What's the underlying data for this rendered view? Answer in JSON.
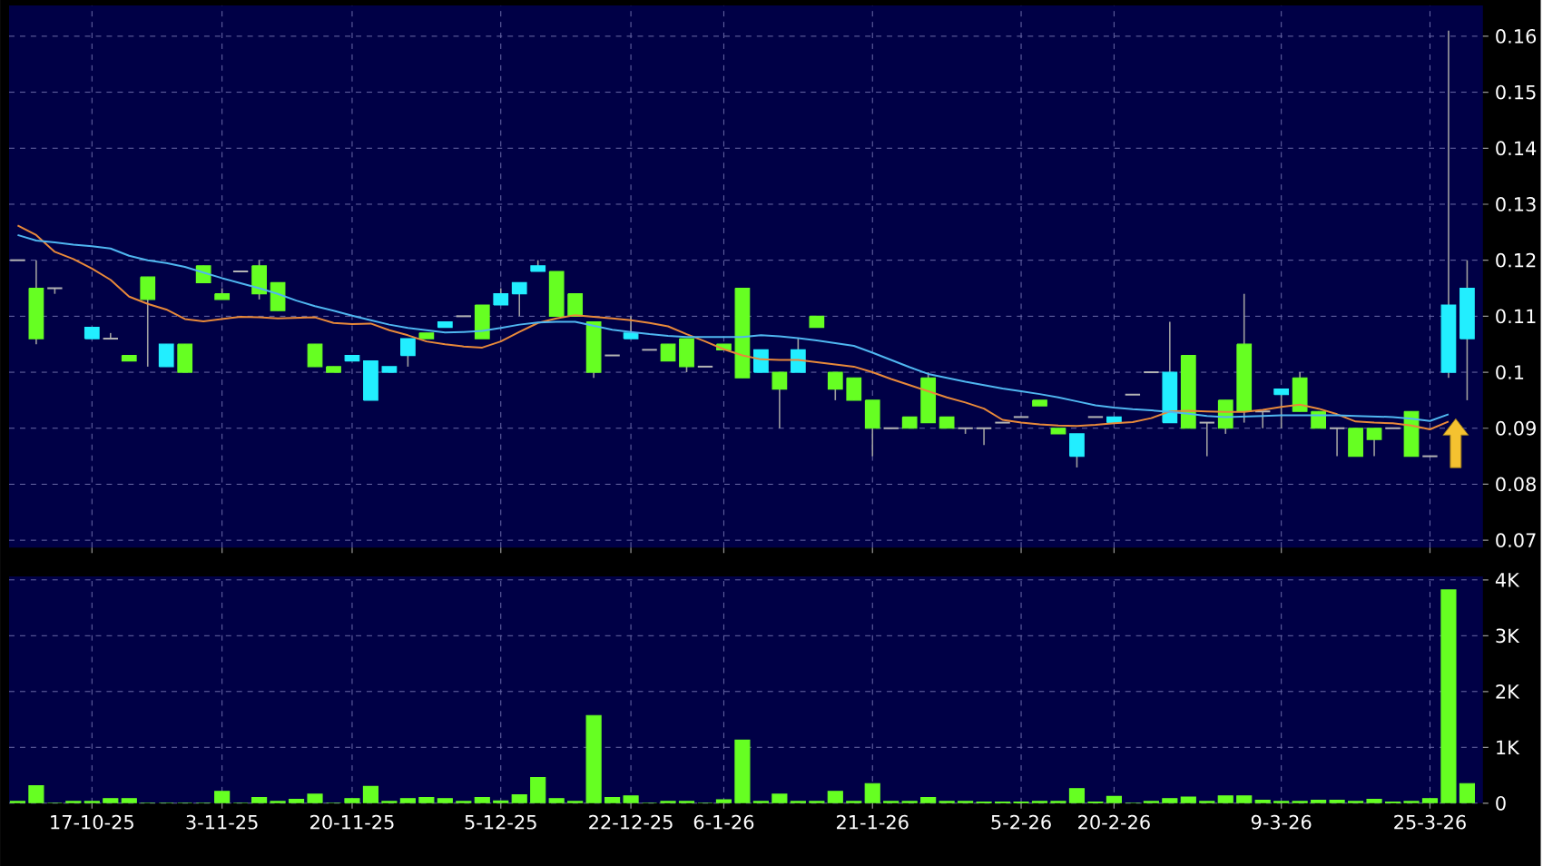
{
  "chart_data": [
    {
      "type": "candlestick",
      "tick_labels": "y",
      "grid": true,
      "categories": [
        null,
        null,
        null,
        null,
        null,
        null,
        null,
        null,
        null,
        null,
        null,
        null,
        null,
        null,
        null,
        null,
        null,
        null,
        null,
        null,
        null,
        null,
        null,
        null,
        null,
        null,
        null,
        null,
        null,
        null,
        null,
        null,
        null,
        null,
        null,
        null,
        null,
        null,
        null,
        null,
        null,
        null,
        null,
        null,
        null,
        null,
        null,
        null,
        null,
        null,
        null,
        null,
        null,
        null,
        null,
        null,
        null,
        null,
        null,
        null,
        null,
        null,
        null,
        null,
        null,
        null,
        null,
        null,
        null,
        null,
        null,
        null,
        null,
        null,
        null,
        null,
        null,
        null,
        null
      ],
      "ohlc": [
        [
          0.12,
          0.12,
          0.12,
          0.12
        ],
        [
          0.115,
          0.12,
          0.105,
          0.106
        ],
        [
          0.115,
          0.115,
          0.114,
          0.115
        ],
        null,
        [
          0.106,
          0.108,
          0.106,
          0.108
        ],
        [
          0.106,
          0.107,
          0.106,
          0.106
        ],
        [
          0.103,
          0.103,
          0.102,
          0.102
        ],
        [
          0.117,
          0.117,
          0.101,
          0.113
        ],
        [
          0.101,
          0.105,
          0.101,
          0.105
        ],
        [
          0.105,
          0.105,
          0.1,
          0.1
        ],
        [
          0.119,
          0.119,
          0.116,
          0.116
        ],
        [
          0.114,
          0.115,
          0.113,
          0.113
        ],
        [
          0.118,
          0.118,
          0.118,
          0.118
        ],
        [
          0.119,
          0.12,
          0.113,
          0.114
        ],
        [
          0.116,
          0.116,
          0.111,
          0.111
        ],
        null,
        [
          0.105,
          0.105,
          0.101,
          0.101
        ],
        [
          0.101,
          0.101,
          0.1,
          0.1
        ],
        [
          0.102,
          0.103,
          0.102,
          0.103
        ],
        [
          0.095,
          0.102,
          0.095,
          0.102
        ],
        [
          0.1,
          0.101,
          0.1,
          0.101
        ],
        [
          0.103,
          0.106,
          0.101,
          0.106
        ],
        [
          0.107,
          0.107,
          0.106,
          0.106
        ],
        [
          0.108,
          0.109,
          0.108,
          0.109
        ],
        [
          0.11,
          0.11,
          0.11,
          0.11
        ],
        [
          0.112,
          0.112,
          0.106,
          0.106
        ],
        [
          0.112,
          0.115,
          0.112,
          0.114
        ],
        [
          0.114,
          0.116,
          0.11,
          0.116
        ],
        [
          0.118,
          0.12,
          0.118,
          0.119
        ],
        [
          0.118,
          0.118,
          0.11,
          0.11
        ],
        [
          0.114,
          0.114,
          0.11,
          0.11
        ],
        [
          0.109,
          0.109,
          0.099,
          0.1
        ],
        [
          0.103,
          0.103,
          0.103,
          0.103
        ],
        [
          0.106,
          0.11,
          0.106,
          0.107
        ],
        [
          0.104,
          0.104,
          0.104,
          0.104
        ],
        [
          0.105,
          0.105,
          0.102,
          0.102
        ],
        [
          0.106,
          0.106,
          0.1,
          0.101
        ],
        [
          0.101,
          0.101,
          0.101,
          0.101
        ],
        [
          0.105,
          0.105,
          0.104,
          0.104
        ],
        [
          0.115,
          0.115,
          0.099,
          0.099
        ],
        [
          0.1,
          0.104,
          0.1,
          0.104
        ],
        [
          0.1,
          0.1,
          0.09,
          0.097
        ],
        [
          0.1,
          0.106,
          0.1,
          0.104
        ],
        [
          0.11,
          0.11,
          0.108,
          0.108
        ],
        [
          0.1,
          0.1,
          0.095,
          0.097
        ],
        [
          0.099,
          0.099,
          0.095,
          0.095
        ],
        [
          0.095,
          0.095,
          0.085,
          0.09
        ],
        [
          0.09,
          0.09,
          0.09,
          0.09
        ],
        [
          0.092,
          0.092,
          0.09,
          0.09
        ],
        [
          0.099,
          0.1,
          0.091,
          0.091
        ],
        [
          0.092,
          0.092,
          0.09,
          0.09
        ],
        [
          0.09,
          0.09,
          0.089,
          0.09
        ],
        [
          0.09,
          0.09,
          0.087,
          0.09
        ],
        [
          0.091,
          0.091,
          0.091,
          0.091
        ],
        [
          0.092,
          0.092,
          0.092,
          0.092
        ],
        [
          0.095,
          0.095,
          0.094,
          0.094
        ],
        [
          0.09,
          0.09,
          0.089,
          0.089
        ],
        [
          0.085,
          0.089,
          0.083,
          0.089
        ],
        [
          0.092,
          0.092,
          0.092,
          0.092
        ],
        [
          0.091,
          0.092,
          0.091,
          0.092
        ],
        [
          0.096,
          0.096,
          0.096,
          0.096
        ],
        [
          0.1,
          0.1,
          0.1,
          0.1
        ],
        [
          0.091,
          0.109,
          0.091,
          0.1
        ],
        [
          0.103,
          0.103,
          0.09,
          0.09
        ],
        [
          0.091,
          0.091,
          0.085,
          0.091
        ],
        [
          0.095,
          0.095,
          0.089,
          0.09
        ],
        [
          0.105,
          0.114,
          0.091,
          0.093
        ],
        [
          0.093,
          0.093,
          0.09,
          0.093
        ],
        [
          0.096,
          0.097,
          0.09,
          0.097
        ],
        [
          0.099,
          0.1,
          0.093,
          0.093
        ],
        [
          0.093,
          0.093,
          0.09,
          0.09
        ],
        [
          0.09,
          0.09,
          0.085,
          0.09
        ],
        [
          0.09,
          0.09,
          0.085,
          0.085
        ],
        [
          0.09,
          0.09,
          0.085,
          0.088
        ],
        [
          0.09,
          0.09,
          0.09,
          0.09
        ],
        [
          0.093,
          0.093,
          0.085,
          0.085
        ],
        [
          0.085,
          0.085,
          0.085,
          0.085
        ],
        [
          0.1,
          0.161,
          0.099,
          0.112
        ],
        [
          0.106,
          0.12,
          0.095,
          0.115
        ]
      ],
      "colors": [
        "#b4b4b4",
        "#66ff22",
        "#b4b4b4",
        null,
        "#22eeff",
        "#b4b4b4",
        "#66ff22",
        "#66ff22",
        "#22eeff",
        "#66ff22",
        "#66ff22",
        "#66ff22",
        "#b4b4b4",
        "#66ff22",
        "#66ff22",
        null,
        "#66ff22",
        "#66ff22",
        "#22eeff",
        "#22eeff",
        "#22eeff",
        "#22eeff",
        "#66ff22",
        "#22eeff",
        "#b4b4b4",
        "#66ff22",
        "#22eeff",
        "#22eeff",
        "#22eeff",
        "#66ff22",
        "#66ff22",
        "#66ff22",
        "#b4b4b4",
        "#22eeff",
        "#b4b4b4",
        "#66ff22",
        "#66ff22",
        "#b4b4b4",
        "#66ff22",
        "#66ff22",
        "#22eeff",
        "#66ff22",
        "#22eeff",
        "#66ff22",
        "#66ff22",
        "#66ff22",
        "#66ff22",
        "#b4b4b4",
        "#66ff22",
        "#66ff22",
        "#66ff22",
        "#b4b4b4",
        "#b4b4b4",
        "#b4b4b4",
        "#b4b4b4",
        "#66ff22",
        "#66ff22",
        "#22eeff",
        "#b4b4b4",
        "#22eeff",
        "#b4b4b4",
        "#b4b4b4",
        "#22eeff",
        "#66ff22",
        "#b4b4b4",
        "#66ff22",
        "#66ff22",
        "#b4b4b4",
        "#22eeff",
        "#66ff22",
        "#66ff22",
        "#b4b4b4",
        "#66ff22",
        "#66ff22",
        "#b4b4b4",
        "#66ff22",
        "#b4b4b4",
        "#22eeff",
        "#22eeff"
      ],
      "series": [
        {
          "type": "line",
          "color": "#e8893a",
          "values": [
            0.1262,
            0.1245,
            0.1215,
            0.1202,
            0.1185,
            0.1165,
            0.1135,
            0.1122,
            0.1112,
            0.1095,
            0.1091,
            0.1095,
            0.1099,
            0.1098,
            0.1096,
            0.1097,
            0.1098,
            0.1088,
            0.1086,
            0.1087,
            0.1075,
            0.1066,
            0.1055,
            0.105,
            0.1046,
            0.1044,
            0.1055,
            0.1072,
            0.1088,
            0.1096,
            0.1102,
            0.1099,
            0.1096,
            0.1093,
            0.1088,
            0.1082,
            0.1068,
            0.1055,
            0.1041,
            0.103,
            0.1023,
            0.1022,
            0.1022,
            0.1018,
            0.1014,
            0.101,
            0.1,
            0.0988,
            0.0977,
            0.0966,
            0.0955,
            0.0946,
            0.0935,
            0.0915,
            0.091,
            0.0907,
            0.0905,
            0.0904,
            0.0906,
            0.0909,
            0.0911,
            0.0918,
            0.093,
            0.0931,
            0.093,
            0.0929,
            0.0929,
            0.0933,
            0.0938,
            0.0942,
            0.0935,
            0.0925,
            0.0912,
            0.091,
            0.0909,
            0.0905,
            0.0898,
            0.0912,
            null
          ]
        },
        {
          "type": "line",
          "color": "#4fb6f0",
          "values": [
            0.1245,
            0.1235,
            0.1232,
            0.1228,
            0.1225,
            0.1221,
            0.1208,
            0.12,
            0.1195,
            0.1188,
            0.1178,
            0.1168,
            0.1159,
            0.115,
            0.114,
            0.1128,
            0.1118,
            0.111,
            0.1101,
            0.1093,
            0.1085,
            0.1079,
            0.1075,
            0.1071,
            0.1072,
            0.1074,
            0.1079,
            0.1085,
            0.1089,
            0.109,
            0.109,
            0.1083,
            0.1076,
            0.1072,
            0.1068,
            0.1065,
            0.1063,
            0.1063,
            0.1063,
            0.1063,
            0.1066,
            0.1064,
            0.1061,
            0.1057,
            0.1052,
            0.1047,
            0.1035,
            0.1022,
            0.1009,
            0.0997,
            0.099,
            0.0983,
            0.0977,
            0.0971,
            0.0966,
            0.0961,
            0.0955,
            0.0948,
            0.0941,
            0.0937,
            0.0934,
            0.0932,
            0.0929,
            0.0926,
            0.0922,
            0.092,
            0.0921,
            0.0922,
            0.0923,
            0.0923,
            0.0923,
            0.0923,
            0.0922,
            0.0921,
            0.092,
            0.0917,
            0.0913,
            0.0925,
            null
          ]
        }
      ],
      "ylim": [
        0.0687,
        0.1655
      ],
      "yticks": [
        0.07,
        0.08,
        0.09,
        0.1,
        0.11,
        0.12,
        0.13,
        0.14,
        0.15,
        0.16
      ]
    },
    {
      "type": "bar",
      "grid": true,
      "color": "#66ff22",
      "categories": [
        null,
        null,
        null,
        null,
        "17-10-25",
        null,
        null,
        null,
        null,
        null,
        null,
        "3-11-25",
        null,
        null,
        null,
        null,
        null,
        null,
        "20-11-25",
        null,
        null,
        null,
        null,
        null,
        null,
        null,
        "5-12-25",
        null,
        null,
        null,
        null,
        null,
        null,
        "22-12-25",
        null,
        null,
        null,
        null,
        "6-1-26",
        null,
        null,
        null,
        null,
        null,
        null,
        null,
        "21-1-26",
        null,
        null,
        null,
        null,
        null,
        null,
        null,
        "5-2-26",
        null,
        null,
        null,
        null,
        "20-2-26",
        null,
        null,
        null,
        null,
        null,
        null,
        null,
        null,
        "9-3-26",
        null,
        null,
        null,
        null,
        null,
        null,
        null,
        "25-3-26",
        null,
        null
      ],
      "values": [
        0.03,
        0.31,
        0,
        0.03,
        0.03,
        0.08,
        0.08,
        0,
        0,
        0,
        0,
        0.21,
        0,
        0.1,
        0.03,
        0.07,
        0.16,
        0,
        0.08,
        0.3,
        0.03,
        0.08,
        0.1,
        0.08,
        0.03,
        0.1,
        0.04,
        0.15,
        0.46,
        0.08,
        0.03,
        1.57,
        0.1,
        0.13,
        0,
        0.03,
        0.03,
        0,
        0.06,
        1.13,
        0.03,
        0.16,
        0.03,
        0.03,
        0.21,
        0.03,
        0.35,
        0.03,
        0.03,
        0.1,
        0.03,
        0.03,
        0.02,
        0.02,
        0.02,
        0.03,
        0.03,
        0.26,
        0.02,
        0.12,
        0,
        0.03,
        0.08,
        0.11,
        0.03,
        0.13,
        0.13,
        0.05,
        0.03,
        0.03,
        0.05,
        0.05,
        0.03,
        0.07,
        0.02,
        0.03,
        0.08,
        3.82,
        0.35
      ],
      "ylim": [
        0,
        4.06
      ],
      "yticks": [
        0,
        {
          "value": 1,
          "label": "1K"
        },
        {
          "value": 2,
          "label": "2K"
        },
        {
          "value": 3,
          "label": "3K"
        },
        {
          "value": 4,
          "label": "4K"
        }
      ]
    }
  ]
}
